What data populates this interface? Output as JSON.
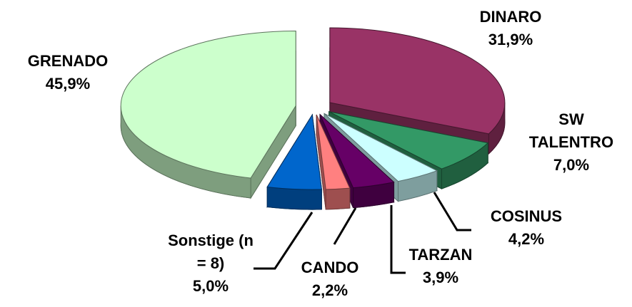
{
  "chart_data": {
    "type": "pie",
    "categories": [
      "DINARO",
      "SW TALENTRO",
      "COSINUS",
      "TARZAN",
      "CANDO",
      "Sonstige (n = 8)",
      "GRENADO"
    ],
    "values": [
      31.9,
      7.0,
      4.2,
      3.9,
      2.2,
      5.0,
      45.9
    ],
    "value_labels": [
      "31,9%",
      "7,0%",
      "4,2%",
      "3,9%",
      "2,2%",
      "5,0%",
      "45,9%"
    ],
    "colors": [
      "#993366",
      "#339966",
      "#ccffff",
      "#660066",
      "#ff8080",
      "#0066cc",
      "#ccffcc"
    ]
  }
}
